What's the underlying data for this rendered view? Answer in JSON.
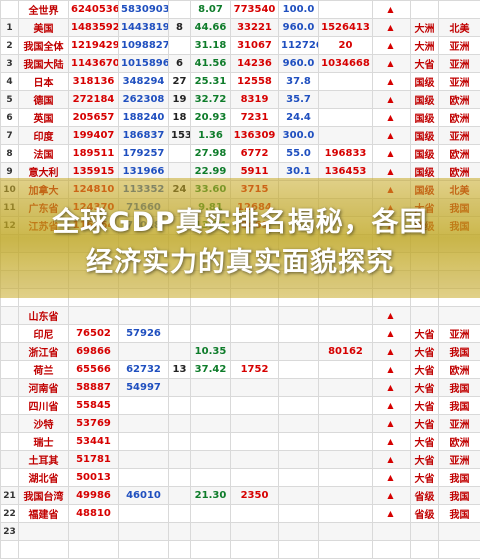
{
  "headline": {
    "line1": "全球GDP真实排名揭秘，各国",
    "line2": "经济实力的真实面貌探究"
  },
  "rows": [
    {
      "rank": "",
      "name": "全世界",
      "v1": "6240536",
      "v2": "5830903",
      "v3": "",
      "v4": "8.07",
      "v5": "773540",
      "v6": "100.0",
      "v7": "",
      "region": "",
      "dir": "",
      "rank2": ""
    },
    {
      "rank": "1",
      "name": "美国",
      "v1": "1483592",
      "v2": "1443819",
      "v3": "8",
      "v4": "44.66",
      "v5": "33221",
      "v6": "960.0",
      "v7": "1526413",
      "region": "大洲",
      "dir": "",
      "rank2": "北美"
    },
    {
      "rank": "2",
      "name": "我国全体",
      "v1": "1219429",
      "v2": "1098827",
      "v3": "",
      "v4": "31.18",
      "v5": "31067",
      "v6": "1127266",
      "v7": "20",
      "region": "大洲",
      "dir": "",
      "rank2": "亚洲"
    },
    {
      "rank": "3",
      "name": "我国大陆",
      "v1": "1143670",
      "v2": "1015896",
      "v3": "6",
      "v4": "41.56",
      "v5": "14236",
      "v6": "960.0",
      "v7": "1034668",
      "region": "大省",
      "dir": "",
      "rank2": "亚洲"
    },
    {
      "rank": "4",
      "name": "日本",
      "v1": "318136",
      "v2": "348294",
      "v3": "27",
      "v4": "25.31",
      "v5": "12558",
      "v6": "37.8",
      "v7": "",
      "region": "国级",
      "dir": "",
      "rank2": "亚洲"
    },
    {
      "rank": "5",
      "name": "德国",
      "v1": "272184",
      "v2": "262308",
      "v3": "19",
      "v4": "32.72",
      "v5": "8319",
      "v6": "35.7",
      "v7": "",
      "region": "国级",
      "dir": "",
      "rank2": "欧洲"
    },
    {
      "rank": "6",
      "name": "英国",
      "v1": "205657",
      "v2": "188240",
      "v3": "18",
      "v4": "20.93",
      "v5": "7231",
      "v6": "24.4",
      "v7": "",
      "region": "国级",
      "dir": "",
      "rank2": "欧洲"
    },
    {
      "rank": "7",
      "name": "印度",
      "v1": "199407",
      "v2": "186837",
      "v3": "153",
      "v4": "1.36",
      "v5": "136309",
      "v6": "300.0",
      "v7": "",
      "region": "国级",
      "dir": "",
      "rank2": "亚洲"
    },
    {
      "rank": "8",
      "name": "法国",
      "v1": "189511",
      "v2": "179257",
      "v3": "",
      "v4": "27.98",
      "v5": "6772",
      "v6": "55.0",
      "v7": "196833",
      "region": "国级",
      "dir": "",
      "rank2": "欧洲"
    },
    {
      "rank": "9",
      "name": "意大利",
      "v1": "135915",
      "v2": "131966",
      "v3": "",
      "v4": "22.99",
      "v5": "5911",
      "v6": "30.1",
      "v7": "136453",
      "region": "国级",
      "dir": "",
      "rank2": "欧洲"
    },
    {
      "rank": "10",
      "name": "加拿大",
      "v1": "124810",
      "v2": "113352",
      "v3": "24",
      "v4": "33.60",
      "v5": "3715",
      "v6": "",
      "v7": "",
      "region": "国级",
      "dir": "",
      "rank2": "北美"
    },
    {
      "rank": "11",
      "name": "广东省",
      "v1": "124370",
      "v2": "71660",
      "v3": "",
      "v4": "9.81",
      "v5": "12684",
      "v6": "",
      "v7": "",
      "region": "大省",
      "dir": "",
      "rank2": "我国"
    },
    {
      "rank": "12",
      "name": "江苏省",
      "v1": "116364",
      "v2": "71018",
      "v3": "",
      "v4": "13.74",
      "v5": "8469",
      "v6": "",
      "v7": "",
      "region": "国级",
      "dir": "",
      "rank2": "我国"
    },
    {
      "rank": "",
      "name": "",
      "v1": "",
      "v2": "",
      "v3": "",
      "v4": "",
      "v5": "",
      "v6": "",
      "v7": "",
      "region": "",
      "dir": "",
      "rank2": ""
    },
    {
      "rank": "",
      "name": "",
      "v1": "",
      "v2": "",
      "v3": "",
      "v4": "",
      "v5": "",
      "v6": "",
      "v7": "",
      "region": "",
      "dir": "",
      "rank2": ""
    },
    {
      "rank": "",
      "name": "",
      "v1": "",
      "v2": "",
      "v3": "",
      "v4": "",
      "v5": "",
      "v6": "",
      "v7": "",
      "region": "",
      "dir": "",
      "rank2": ""
    },
    {
      "rank": "",
      "name": "",
      "v1": "",
      "v2": "",
      "v3": "",
      "v4": "",
      "v5": "",
      "v6": "",
      "v7": "",
      "region": "",
      "dir": "",
      "rank2": ""
    },
    {
      "rank": "",
      "name": "山东省",
      "v1": "",
      "v2": "",
      "v3": "",
      "v4": "",
      "v5": "",
      "v6": "",
      "v7": "",
      "region": "",
      "dir": "",
      "rank2": ""
    },
    {
      "rank": "",
      "name": "印尼",
      "v1": "76502",
      "v2": "57926",
      "v3": "",
      "v4": "",
      "v5": "",
      "v6": "",
      "v7": "",
      "region": "大省",
      "dir": "",
      "rank2": "亚洲"
    },
    {
      "rank": "",
      "name": "浙江省",
      "v1": "69866",
      "v2": "",
      "v3": "",
      "v4": "10.35",
      "v5": "",
      "v6": "",
      "v7": "80162",
      "region": "大省",
      "dir": "",
      "rank2": "我国"
    },
    {
      "rank": "",
      "name": "荷兰",
      "v1": "65566",
      "v2": "62732",
      "v3": "13",
      "v4": "37.42",
      "v5": "1752",
      "v6": "",
      "v7": "",
      "region": "大省",
      "dir": "",
      "rank2": "欧洲"
    },
    {
      "rank": "",
      "name": "河南省",
      "v1": "58887",
      "v2": "54997",
      "v3": "",
      "v4": "",
      "v5": "",
      "v6": "",
      "v7": "",
      "region": "大省",
      "dir": "",
      "rank2": "我国"
    },
    {
      "rank": "",
      "name": "四川省",
      "v1": "55845",
      "v2": "",
      "v3": "",
      "v4": "",
      "v5": "",
      "v6": "",
      "v7": "",
      "region": "大省",
      "dir": "",
      "rank2": "我国"
    },
    {
      "rank": "",
      "name": "沙特",
      "v1": "53769",
      "v2": "",
      "v3": "",
      "v4": "",
      "v5": "",
      "v6": "",
      "v7": "",
      "region": "大省",
      "dir": "",
      "rank2": "亚洲"
    },
    {
      "rank": "",
      "name": "瑞士",
      "v1": "53441",
      "v2": "",
      "v3": "",
      "v4": "",
      "v5": "",
      "v6": "",
      "v7": "",
      "region": "大省",
      "dir": "",
      "rank2": "欧洲"
    },
    {
      "rank": "",
      "name": "土耳其",
      "v1": "51781",
      "v2": "",
      "v3": "",
      "v4": "",
      "v5": "",
      "v6": "",
      "v7": "",
      "region": "大省",
      "dir": "",
      "rank2": "亚洲"
    },
    {
      "rank": "",
      "name": "湖北省",
      "v1": "50013",
      "v2": "",
      "v3": "",
      "v4": "",
      "v5": "",
      "v6": "",
      "v7": "",
      "region": "大省",
      "dir": "",
      "rank2": "我国"
    },
    {
      "rank": "21",
      "name": "我国台湾",
      "v1": "49986",
      "v2": "46010",
      "v3": "",
      "v4": "21.30",
      "v5": "2350",
      "v6": "",
      "v7": "",
      "region": "省级",
      "dir": "",
      "rank2": "我国"
    },
    {
      "rank": "22",
      "name": "福建省",
      "v1": "48810",
      "v2": "",
      "v3": "",
      "v4": "",
      "v5": "",
      "v6": "",
      "v7": "",
      "region": "省级",
      "dir": "",
      "rank2": "我国"
    },
    {
      "rank": "23",
      "name": "",
      "v1": "",
      "v2": "",
      "v3": "",
      "v4": "",
      "v5": "",
      "v6": "",
      "v7": "",
      "region": "",
      "dir": "",
      "rank2": ""
    },
    {
      "rank": "",
      "name": "",
      "v1": "",
      "v2": "",
      "v3": "",
      "v4": "",
      "v5": "",
      "v6": "",
      "v7": "",
      "region": "",
      "dir": "",
      "rank2": ""
    }
  ],
  "colors": {
    "overlay": "#c8aa28",
    "name_red": "#c00000",
    "num_blue": "#1f4fbf",
    "num_green": "#0e7c2a"
  }
}
